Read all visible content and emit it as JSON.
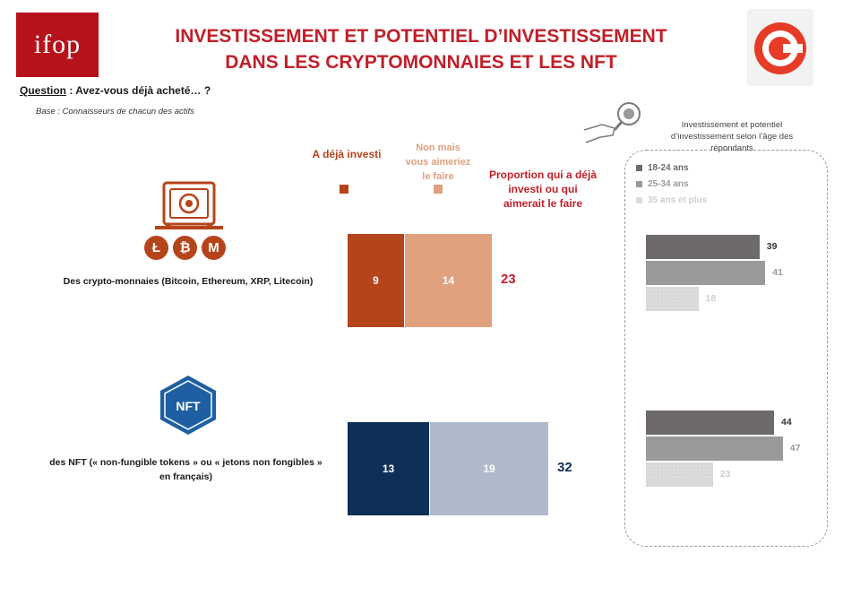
{
  "header": {
    "logo_text": "ifop",
    "title_line1": "INVESTISSEMENT ET POTENTIEL D’INVESTISSEMENT",
    "title_line2": "DANS LES CRYPTOMONNAIES ET LES NFT",
    "question_label": "Question",
    "question_text": " : Avez-vous déjà acheté… ?",
    "base_text": "Base : Connaisseurs de chacun des actifs"
  },
  "legend": {
    "invested": "A déjà investi",
    "would_like_1": "Non mais",
    "would_like_2": "vous aimeriez",
    "would_like_3": "le faire",
    "proportion_1": "Proportion qui a déjà",
    "proportion_2": "investi ou qui",
    "proportion_3": "aimerait le faire"
  },
  "rows": {
    "crypto_label": "Des crypto-monnaies (Bitcoin, Ethereum, XRP, Litecoin)",
    "nft_label_1": "des NFT (« non-fungible tokens » ou « jetons non fongibles »",
    "nft_label_2": "en français)",
    "nft_icon_text": "NFT",
    "coin_glyphs": [
      "Ł",
      "₿",
      "M"
    ]
  },
  "age_panel": {
    "title_1": "Investissement et potentiel",
    "title_2": "d’investissement selon l’âge des",
    "title_3": "répondants",
    "groups": [
      "18-24 ans",
      "25-34 ans",
      "35 ans et plus"
    ]
  },
  "colors": {
    "brand_red": "#c0202a",
    "crypto_invested": "#b5441b",
    "crypto_would": "#e1a07e",
    "nft_invested": "#0e2f58",
    "nft_would": "#aebacb",
    "age_18_24": "#6f6a6a",
    "age_25_34": "#9a9a9a",
    "age_35_plus": "#dcdcdc",
    "nft_icon_blue": "#1e5fa3"
  },
  "chart_data": [
    {
      "type": "bar",
      "stacked": true,
      "orientation": "horizontal",
      "categories": [
        "Des crypto-monnaies (Bitcoin, Ethereum, XRP, Litecoin)",
        "des NFT (« non-fungible tokens » ou « jetons non fongibles » en français)"
      ],
      "series": [
        {
          "name": "A déjà investi",
          "values": [
            9,
            13
          ]
        },
        {
          "name": "Non mais vous aimeriez le faire",
          "values": [
            14,
            19
          ]
        }
      ],
      "totals_label": "Proportion qui a déjà investi ou qui aimerait le faire",
      "totals": [
        23,
        32
      ]
    },
    {
      "type": "bar",
      "orientation": "horizontal",
      "title": "Investissement et potentiel d’investissement selon l’âge des répondants",
      "categories": [
        "Des crypto-monnaies",
        "des NFT"
      ],
      "series": [
        {
          "name": "18-24 ans",
          "values": [
            39,
            44
          ]
        },
        {
          "name": "25-34 ans",
          "values": [
            41,
            47
          ]
        },
        {
          "name": "35 ans et plus",
          "values": [
            18,
            23
          ]
        }
      ]
    }
  ]
}
